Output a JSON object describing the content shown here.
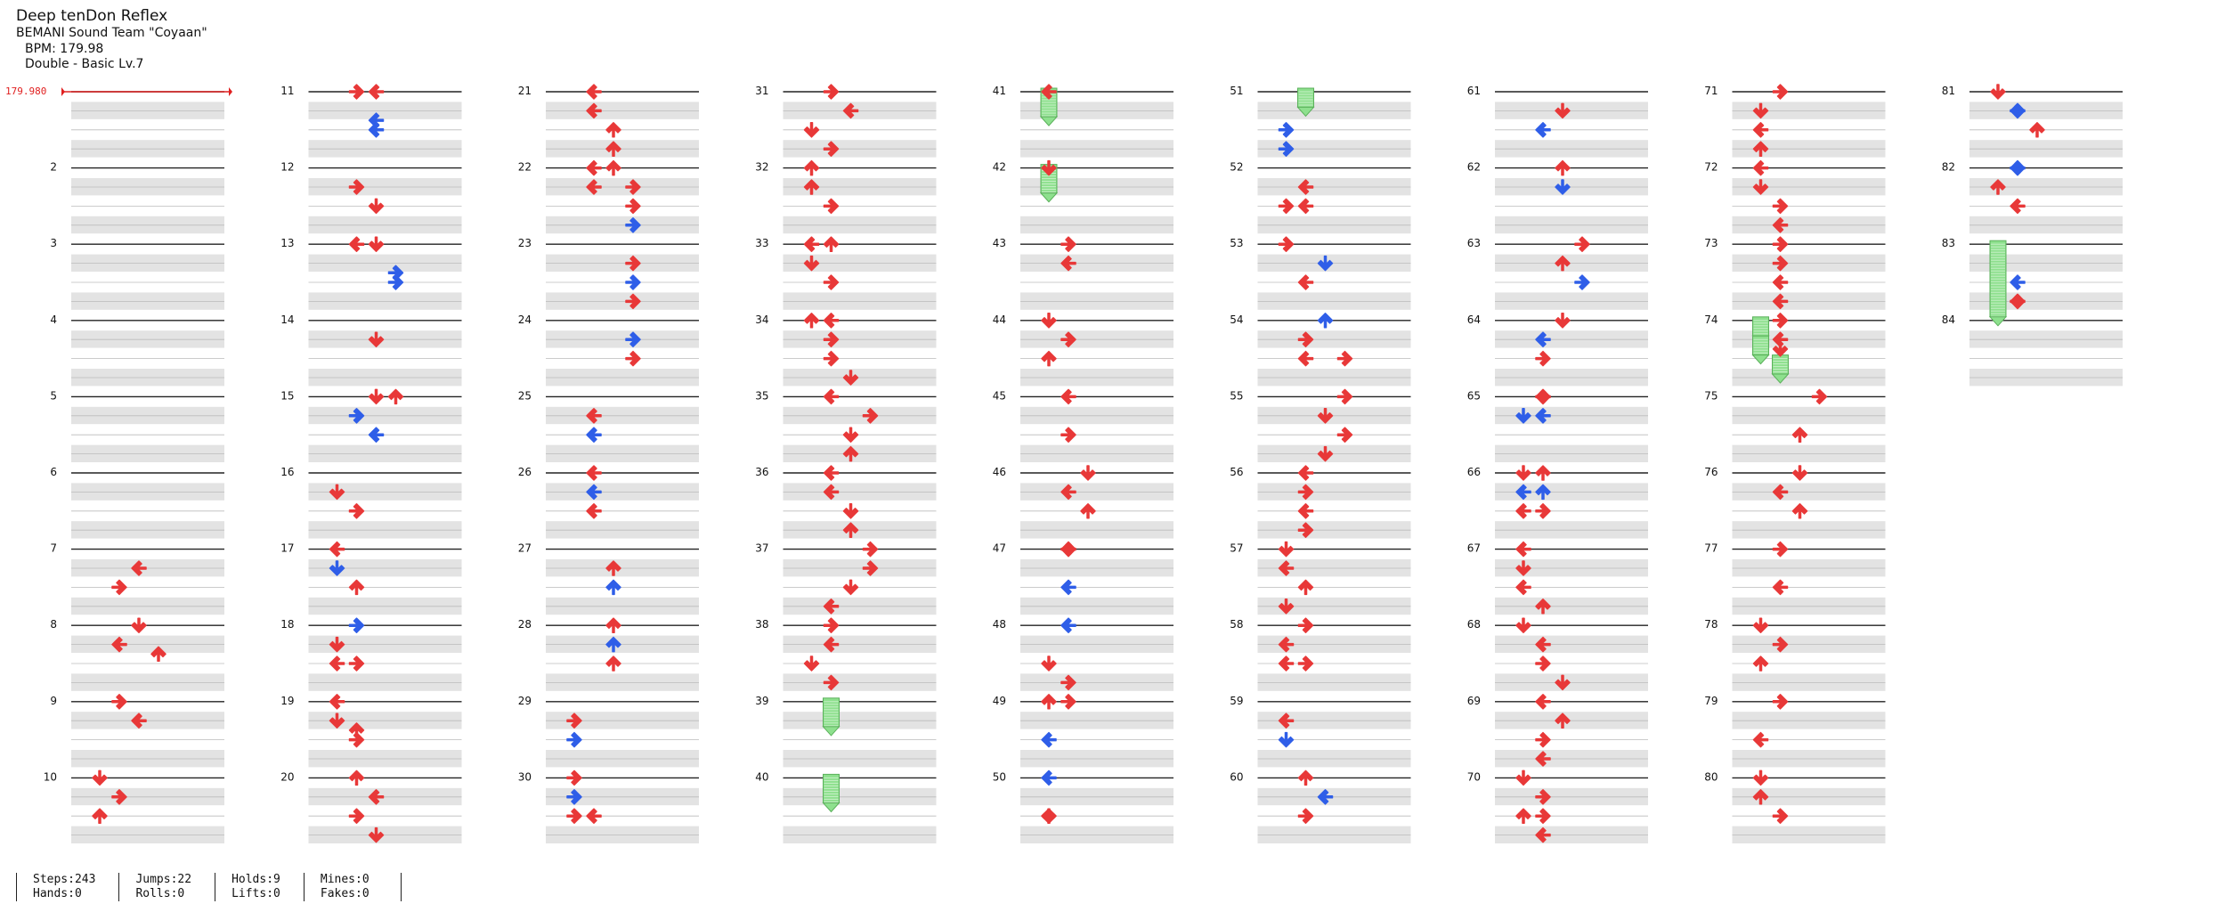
{
  "song": {
    "title": "Deep tenDon Reflex",
    "artist": "BEMANI Sound Team \"Coyaan\"",
    "bpm_text": "BPM: 179.98",
    "difficulty_text": "Double - Basic  Lv.7"
  },
  "bpm_marker": "179.980",
  "stats": [
    {
      "line1": "Steps:243",
      "line2": "Hands:0"
    },
    {
      "line1": "Jumps:22",
      "line2": "Rolls:0"
    },
    {
      "line1": "Holds:9",
      "line2": "Lifts:0"
    },
    {
      "line1": "Mines:0",
      "line2": "Fakes:0"
    }
  ],
  "colors": {
    "note": "#e83838",
    "note_alt": "#2f5ee8",
    "hold": "#8ee08e",
    "bpm": "#e02020"
  },
  "measure_count": 84,
  "measures_per_column": 10,
  "columns": 9,
  "rows_per_measure": 4,
  "notes": [
    {
      "m": 7,
      "r": 1,
      "l": 2,
      "d": "L"
    },
    {
      "m": 7,
      "r": 2,
      "l": 1,
      "d": "R"
    },
    {
      "m": 8,
      "r": 0,
      "l": 2,
      "d": "D"
    },
    {
      "m": 8,
      "r": 1,
      "l": 1,
      "d": "L"
    },
    {
      "m": 8,
      "r": 1.5,
      "l": 3,
      "d": "U"
    },
    {
      "m": 9,
      "r": 0,
      "l": 1,
      "d": "R"
    },
    {
      "m": 9,
      "r": 1,
      "l": 2,
      "d": "L"
    },
    {
      "m": 10,
      "r": 0,
      "l": 0,
      "d": "D"
    },
    {
      "m": 10,
      "r": 1,
      "l": 1,
      "d": "R"
    },
    {
      "m": 10,
      "r": 2,
      "l": 0,
      "d": "U"
    },
    {
      "m": 11,
      "r": 0,
      "l": 1,
      "d": "R"
    },
    {
      "m": 11,
      "r": 0,
      "l": 2,
      "d": "L"
    },
    {
      "m": 11,
      "r": 1.5,
      "l": 2,
      "d": "L",
      "c": "b"
    },
    {
      "m": 11,
      "r": 2,
      "l": 2,
      "d": "L",
      "c": "b"
    },
    {
      "m": 12,
      "r": 1,
      "l": 1,
      "d": "R"
    },
    {
      "m": 12,
      "r": 2,
      "l": 2,
      "d": "D"
    },
    {
      "m": 13,
      "r": 0,
      "l": 2,
      "d": "D"
    },
    {
      "m": 13,
      "r": 0,
      "l": 1,
      "d": "L"
    },
    {
      "m": 13,
      "r": 1.5,
      "l": 3,
      "d": "R",
      "c": "b"
    },
    {
      "m": 13,
      "r": 2,
      "l": 3,
      "d": "R",
      "c": "b"
    },
    {
      "m": 14,
      "r": 1,
      "l": 2,
      "d": "D"
    },
    {
      "m": 15,
      "r": 0,
      "l": 2,
      "d": "D"
    },
    {
      "m": 15,
      "r": 0,
      "l": 3,
      "d": "U"
    },
    {
      "m": 15,
      "r": 1,
      "l": 1,
      "d": "R",
      "c": "b"
    },
    {
      "m": 15,
      "r": 2,
      "l": 2,
      "d": "L",
      "c": "b"
    },
    {
      "m": 16,
      "r": 1,
      "l": 0,
      "d": "D"
    },
    {
      "m": 16,
      "r": 2,
      "l": 1,
      "d": "R"
    },
    {
      "m": 17,
      "r": 0,
      "l": 0,
      "d": "L"
    },
    {
      "m": 17,
      "r": 1,
      "l": 0,
      "d": "D",
      "c": "b"
    },
    {
      "m": 17,
      "r": 2,
      "l": 1,
      "d": "U"
    },
    {
      "m": 18,
      "r": 0,
      "l": 1,
      "d": "R",
      "c": "b"
    },
    {
      "m": 18,
      "r": 1,
      "l": 0,
      "d": "D"
    },
    {
      "m": 18,
      "r": 2,
      "l": 0,
      "d": "L"
    },
    {
      "m": 18,
      "r": 2,
      "l": 1,
      "d": "R"
    },
    {
      "m": 19,
      "r": 0,
      "l": 0,
      "d": "L"
    },
    {
      "m": 19,
      "r": 1,
      "l": 0,
      "d": "D"
    },
    {
      "m": 19,
      "r": 1.5,
      "l": 1,
      "d": "U"
    },
    {
      "m": 19,
      "r": 2,
      "l": 1,
      "d": "R"
    },
    {
      "m": 20,
      "r": 0,
      "l": 1,
      "d": "U"
    },
    {
      "m": 20,
      "r": 1,
      "l": 2,
      "d": "L"
    },
    {
      "m": 20,
      "r": 2,
      "l": 1,
      "d": "R"
    },
    {
      "m": 20,
      "r": 3,
      "l": 2,
      "d": "D"
    },
    {
      "m": 21,
      "r": 0,
      "l": 1,
      "d": "L"
    },
    {
      "m": 21,
      "r": 1,
      "l": 1,
      "d": "L"
    },
    {
      "m": 21,
      "r": 2,
      "l": 2,
      "d": "U"
    },
    {
      "m": 21,
      "r": 3,
      "l": 2,
      "d": "U"
    },
    {
      "m": 22,
      "r": 0,
      "l": 1,
      "d": "L"
    },
    {
      "m": 22,
      "r": 0,
      "l": 2,
      "d": "U"
    },
    {
      "m": 22,
      "r": 1,
      "l": 1,
      "d": "L"
    },
    {
      "m": 22,
      "r": 1,
      "l": 3,
      "d": "R"
    },
    {
      "m": 22,
      "r": 2,
      "l": 3,
      "d": "R"
    },
    {
      "m": 22,
      "r": 3,
      "l": 3,
      "d": "R",
      "c": "b"
    },
    {
      "m": 23,
      "r": 1,
      "l": 3,
      "d": "R"
    },
    {
      "m": 23,
      "r": 2,
      "l": 3,
      "d": "R",
      "c": "b"
    },
    {
      "m": 23,
      "r": 3,
      "l": 3,
      "d": "R"
    },
    {
      "m": 24,
      "r": 1,
      "l": 3,
      "d": "R",
      "c": "b"
    },
    {
      "m": 24,
      "r": 2,
      "l": 3,
      "d": "R"
    },
    {
      "m": 25,
      "r": 1,
      "l": 1,
      "d": "L"
    },
    {
      "m": 25,
      "r": 2,
      "l": 1,
      "d": "L",
      "c": "b"
    },
    {
      "m": 26,
      "r": 0,
      "l": 1,
      "d": "L"
    },
    {
      "m": 26,
      "r": 1,
      "l": 1,
      "d": "L",
      "c": "b"
    },
    {
      "m": 26,
      "r": 2,
      "l": 1,
      "d": "L"
    },
    {
      "m": 27,
      "r": 1,
      "l": 2,
      "d": "U"
    },
    {
      "m": 27,
      "r": 2,
      "l": 2,
      "d": "U",
      "c": "b"
    },
    {
      "m": 28,
      "r": 0,
      "l": 2,
      "d": "U"
    },
    {
      "m": 28,
      "r": 1,
      "l": 2,
      "d": "U",
      "c": "b"
    },
    {
      "m": 28,
      "r": 2,
      "l": 2,
      "d": "U"
    },
    {
      "m": 29,
      "r": 1,
      "l": 0,
      "d": "R"
    },
    {
      "m": 29,
      "r": 2,
      "l": 0,
      "d": "R",
      "c": "b"
    },
    {
      "m": 30,
      "r": 0,
      "l": 0,
      "d": "R"
    },
    {
      "m": 30,
      "r": 1,
      "l": 0,
      "d": "R",
      "c": "b"
    },
    {
      "m": 30,
      "r": 2,
      "l": 0,
      "d": "R"
    },
    {
      "m": 30,
      "r": 2,
      "l": 1,
      "d": "L"
    },
    {
      "m": 31,
      "r": 0,
      "l": 1,
      "d": "R"
    },
    {
      "m": 31,
      "r": 1,
      "l": 2,
      "d": "L"
    },
    {
      "m": 31,
      "r": 2,
      "l": 0,
      "d": "D"
    },
    {
      "m": 31,
      "r": 3,
      "l": 1,
      "d": "R"
    },
    {
      "m": 32,
      "r": 0,
      "l": 0,
      "d": "U"
    },
    {
      "m": 32,
      "r": 1,
      "l": 0,
      "d": "U"
    },
    {
      "m": 32,
      "r": 2,
      "l": 1,
      "d": "R"
    },
    {
      "m": 33,
      "r": 0,
      "l": 0,
      "d": "L"
    },
    {
      "m": 33,
      "r": 0,
      "l": 1,
      "d": "U"
    },
    {
      "m": 33,
      "r": 1,
      "l": 0,
      "d": "D"
    },
    {
      "m": 33,
      "r": 2,
      "l": 1,
      "d": "R"
    },
    {
      "m": 34,
      "r": 0,
      "l": 0,
      "d": "U"
    },
    {
      "m": 34,
      "r": 0,
      "l": 1,
      "d": "L"
    },
    {
      "m": 34,
      "r": 1,
      "l": 1,
      "d": "R"
    },
    {
      "m": 34,
      "r": 2,
      "l": 1,
      "d": "R"
    },
    {
      "m": 34,
      "r": 3,
      "l": 2,
      "d": "D"
    },
    {
      "m": 35,
      "r": 0,
      "l": 1,
      "d": "L"
    },
    {
      "m": 35,
      "r": 1,
      "l": 3,
      "d": "R"
    },
    {
      "m": 35,
      "r": 2,
      "l": 2,
      "d": "D"
    },
    {
      "m": 35,
      "r": 3,
      "l": 2,
      "d": "U"
    },
    {
      "m": 36,
      "r": 0,
      "l": 1,
      "d": "L"
    },
    {
      "m": 36,
      "r": 1,
      "l": 1,
      "d": "L"
    },
    {
      "m": 36,
      "r": 2,
      "l": 2,
      "d": "D"
    },
    {
      "m": 36,
      "r": 3,
      "l": 2,
      "d": "U"
    },
    {
      "m": 37,
      "r": 0,
      "l": 3,
      "d": "R"
    },
    {
      "m": 37,
      "r": 1,
      "l": 3,
      "d": "R"
    },
    {
      "m": 37,
      "r": 2,
      "l": 2,
      "d": "D"
    },
    {
      "m": 37,
      "r": 3,
      "l": 1,
      "d": "L"
    },
    {
      "m": 38,
      "r": 0,
      "l": 1,
      "d": "R"
    },
    {
      "m": 38,
      "r": 1,
      "l": 1,
      "d": "L"
    },
    {
      "m": 38,
      "r": 2,
      "l": 0,
      "d": "D"
    },
    {
      "m": 38,
      "r": 3,
      "l": 1,
      "d": "R"
    },
    {
      "m": 41,
      "r": 0,
      "l": 0,
      "d": "L"
    },
    {
      "m": 42,
      "r": 0,
      "l": 0,
      "d": "D"
    },
    {
      "m": 43,
      "r": 0,
      "l": 1,
      "d": "R"
    },
    {
      "m": 43,
      "r": 1,
      "l": 1,
      "d": "L"
    },
    {
      "m": 44,
      "r": 0,
      "l": 0,
      "d": "D"
    },
    {
      "m": 44,
      "r": 1,
      "l": 1,
      "d": "R"
    },
    {
      "m": 44,
      "r": 2,
      "l": 0,
      "d": "U"
    },
    {
      "m": 45,
      "r": 0,
      "l": 1,
      "d": "L"
    },
    {
      "m": 45,
      "r": 2,
      "l": 1,
      "d": "R"
    },
    {
      "m": 46,
      "r": 0,
      "l": 2,
      "d": "D"
    },
    {
      "m": 46,
      "r": 1,
      "l": 1,
      "d": "L"
    },
    {
      "m": 46,
      "r": 2,
      "l": 2,
      "d": "U"
    },
    {
      "m": 47,
      "r": 0,
      "l": 1,
      "d": "R"
    },
    {
      "m": 47,
      "r": 0,
      "l": 1,
      "d": "L"
    },
    {
      "m": 47,
      "r": 2,
      "l": 1,
      "d": "L",
      "c": "b"
    },
    {
      "m": 48,
      "r": 0,
      "l": 1,
      "d": "L",
      "c": "b"
    },
    {
      "m": 48,
      "r": 2,
      "l": 0,
      "d": "D"
    },
    {
      "m": 48,
      "r": 3,
      "l": 1,
      "d": "R"
    },
    {
      "m": 49,
      "r": 0,
      "l": 0,
      "d": "U"
    },
    {
      "m": 49,
      "r": 0,
      "l": 1,
      "d": "R"
    },
    {
      "m": 49,
      "r": 2,
      "l": 0,
      "d": "L",
      "c": "b"
    },
    {
      "m": 50,
      "r": 0,
      "l": 0,
      "d": "L",
      "c": "b"
    },
    {
      "m": 50,
      "r": 2,
      "l": 0,
      "d": "D"
    },
    {
      "m": 50,
      "r": 2,
      "l": 0,
      "d": "U"
    },
    {
      "m": 51,
      "r": 2,
      "l": 0,
      "d": "R",
      "c": "b"
    },
    {
      "m": 51,
      "r": 3,
      "l": 0,
      "d": "R",
      "c": "b"
    },
    {
      "m": 52,
      "r": 1,
      "l": 1,
      "d": "L"
    },
    {
      "m": 52,
      "r": 2,
      "l": 0,
      "d": "R"
    },
    {
      "m": 52,
      "r": 2,
      "l": 1,
      "d": "L"
    },
    {
      "m": 53,
      "r": 0,
      "l": 0,
      "d": "R"
    },
    {
      "m": 53,
      "r": 1,
      "l": 2,
      "d": "D",
      "c": "b"
    },
    {
      "m": 53,
      "r": 2,
      "l": 1,
      "d": "L"
    },
    {
      "m": 54,
      "r": 0,
      "l": 2,
      "d": "U",
      "c": "b"
    },
    {
      "m": 54,
      "r": 1,
      "l": 1,
      "d": "R"
    },
    {
      "m": 54,
      "r": 2,
      "l": 1,
      "d": "L"
    },
    {
      "m": 54,
      "r": 2,
      "l": 3,
      "d": "R"
    },
    {
      "m": 55,
      "r": 0,
      "l": 3,
      "d": "R"
    },
    {
      "m": 55,
      "r": 1,
      "l": 2,
      "d": "D"
    },
    {
      "m": 55,
      "r": 2,
      "l": 3,
      "d": "R"
    },
    {
      "m": 55,
      "r": 3,
      "l": 2,
      "d": "D"
    },
    {
      "m": 56,
      "r": 0,
      "l": 1,
      "d": "L"
    },
    {
      "m": 56,
      "r": 1,
      "l": 1,
      "d": "R"
    },
    {
      "m": 56,
      "r": 2,
      "l": 1,
      "d": "L"
    },
    {
      "m": 56,
      "r": 3,
      "l": 1,
      "d": "R"
    },
    {
      "m": 57,
      "r": 0,
      "l": 0,
      "d": "D"
    },
    {
      "m": 57,
      "r": 1,
      "l": 0,
      "d": "L"
    },
    {
      "m": 57,
      "r": 2,
      "l": 1,
      "d": "U"
    },
    {
      "m": 57,
      "r": 3,
      "l": 0,
      "d": "D"
    },
    {
      "m": 58,
      "r": 0,
      "l": 1,
      "d": "R"
    },
    {
      "m": 58,
      "r": 1,
      "l": 0,
      "d": "L"
    },
    {
      "m": 58,
      "r": 2,
      "l": 0,
      "d": "L"
    },
    {
      "m": 58,
      "r": 2,
      "l": 1,
      "d": "R"
    },
    {
      "m": 59,
      "r": 1,
      "l": 0,
      "d": "L"
    },
    {
      "m": 59,
      "r": 2,
      "l": 0,
      "d": "D",
      "c": "b"
    },
    {
      "m": 60,
      "r": 0,
      "l": 1,
      "d": "U"
    },
    {
      "m": 60,
      "r": 1,
      "l": 2,
      "d": "L",
      "c": "b"
    },
    {
      "m": 60,
      "r": 2,
      "l": 1,
      "d": "R"
    },
    {
      "m": 61,
      "r": 1,
      "l": 2,
      "d": "D"
    },
    {
      "m": 61,
      "r": 2,
      "l": 1,
      "d": "L",
      "c": "b"
    },
    {
      "m": 62,
      "r": 0,
      "l": 2,
      "d": "U"
    },
    {
      "m": 62,
      "r": 1,
      "l": 2,
      "d": "D",
      "c": "b"
    },
    {
      "m": 63,
      "r": 0,
      "l": 3,
      "d": "R"
    },
    {
      "m": 63,
      "r": 1,
      "l": 2,
      "d": "U"
    },
    {
      "m": 63,
      "r": 2,
      "l": 3,
      "d": "R",
      "c": "b"
    },
    {
      "m": 64,
      "r": 0,
      "l": 2,
      "d": "D"
    },
    {
      "m": 64,
      "r": 1,
      "l": 1,
      "d": "L",
      "c": "b"
    },
    {
      "m": 64,
      "r": 2,
      "l": 1,
      "d": "R"
    },
    {
      "m": 65,
      "r": 0,
      "l": 1,
      "d": "R"
    },
    {
      "m": 65,
      "r": 0,
      "l": 1,
      "d": "L"
    },
    {
      "m": 65,
      "r": 1,
      "l": 0,
      "d": "D",
      "c": "b"
    },
    {
      "m": 65,
      "r": 1,
      "l": 1,
      "d": "L",
      "c": "b"
    },
    {
      "m": 66,
      "r": 0,
      "l": 0,
      "d": "D"
    },
    {
      "m": 66,
      "r": 0,
      "l": 1,
      "d": "U"
    },
    {
      "m": 66,
      "r": 1,
      "l": 0,
      "d": "L",
      "c": "b"
    },
    {
      "m": 66,
      "r": 1,
      "l": 1,
      "d": "U",
      "c": "b"
    },
    {
      "m": 66,
      "r": 2,
      "l": 0,
      "d": "L"
    },
    {
      "m": 66,
      "r": 2,
      "l": 1,
      "d": "R"
    },
    {
      "m": 67,
      "r": 0,
      "l": 0,
      "d": "L"
    },
    {
      "m": 67,
      "r": 1,
      "l": 0,
      "d": "D"
    },
    {
      "m": 67,
      "r": 2,
      "l": 0,
      "d": "L"
    },
    {
      "m": 67,
      "r": 3,
      "l": 1,
      "d": "U"
    },
    {
      "m": 68,
      "r": 0,
      "l": 0,
      "d": "D"
    },
    {
      "m": 68,
      "r": 1,
      "l": 1,
      "d": "L"
    },
    {
      "m": 68,
      "r": 2,
      "l": 1,
      "d": "R"
    },
    {
      "m": 68,
      "r": 3,
      "l": 2,
      "d": "D"
    },
    {
      "m": 69,
      "r": 0,
      "l": 1,
      "d": "L"
    },
    {
      "m": 69,
      "r": 1,
      "l": 2,
      "d": "U"
    },
    {
      "m": 69,
      "r": 2,
      "l": 1,
      "d": "R"
    },
    {
      "m": 69,
      "r": 3,
      "l": 1,
      "d": "L"
    },
    {
      "m": 70,
      "r": 0,
      "l": 0,
      "d": "D"
    },
    {
      "m": 70,
      "r": 1,
      "l": 1,
      "d": "R"
    },
    {
      "m": 70,
      "r": 2,
      "l": 0,
      "d": "U"
    },
    {
      "m": 70,
      "r": 2,
      "l": 1,
      "d": "R"
    },
    {
      "m": 70,
      "r": 3,
      "l": 1,
      "d": "L"
    },
    {
      "m": 71,
      "r": 0,
      "l": 1,
      "d": "R"
    },
    {
      "m": 71,
      "r": 1,
      "l": 0,
      "d": "D"
    },
    {
      "m": 71,
      "r": 2,
      "l": 0,
      "d": "L"
    },
    {
      "m": 71,
      "r": 3,
      "l": 0,
      "d": "U"
    },
    {
      "m": 72,
      "r": 0,
      "l": 0,
      "d": "L"
    },
    {
      "m": 72,
      "r": 1,
      "l": 0,
      "d": "D"
    },
    {
      "m": 72,
      "r": 2,
      "l": 1,
      "d": "R"
    },
    {
      "m": 72,
      "r": 3,
      "l": 1,
      "d": "L"
    },
    {
      "m": 73,
      "r": 0,
      "l": 1,
      "d": "R"
    },
    {
      "m": 73,
      "r": 1,
      "l": 1,
      "d": "R"
    },
    {
      "m": 73,
      "r": 2,
      "l": 1,
      "d": "L"
    },
    {
      "m": 73,
      "r": 3,
      "l": 1,
      "d": "L"
    },
    {
      "m": 74,
      "r": 0,
      "l": 1,
      "d": "R"
    },
    {
      "m": 74,
      "r": 1,
      "l": 1,
      "d": "L"
    },
    {
      "m": 74,
      "r": 1.5,
      "l": 1,
      "d": "D"
    },
    {
      "m": 75,
      "r": 0,
      "l": 3,
      "d": "R"
    },
    {
      "m": 75,
      "r": 2,
      "l": 2,
      "d": "U"
    },
    {
      "m": 76,
      "r": 0,
      "l": 2,
      "d": "D"
    },
    {
      "m": 76,
      "r": 1,
      "l": 1,
      "d": "L"
    },
    {
      "m": 76,
      "r": 2,
      "l": 2,
      "d": "U"
    },
    {
      "m": 77,
      "r": 0,
      "l": 1,
      "d": "R"
    },
    {
      "m": 77,
      "r": 2,
      "l": 1,
      "d": "L"
    },
    {
      "m": 78,
      "r": 0,
      "l": 0,
      "d": "D"
    },
    {
      "m": 78,
      "r": 1,
      "l": 1,
      "d": "R"
    },
    {
      "m": 78,
      "r": 2,
      "l": 0,
      "d": "U"
    },
    {
      "m": 79,
      "r": 0,
      "l": 1,
      "d": "R"
    },
    {
      "m": 79,
      "r": 2,
      "l": 0,
      "d": "L"
    },
    {
      "m": 80,
      "r": 0,
      "l": 0,
      "d": "D"
    },
    {
      "m": 80,
      "r": 1,
      "l": 0,
      "d": "U"
    },
    {
      "m": 80,
      "r": 2,
      "l": 1,
      "d": "R"
    },
    {
      "m": 81,
      "r": 0,
      "l": 0,
      "d": "D"
    },
    {
      "m": 81,
      "r": 1,
      "l": 1,
      "d": "R",
      "c": "b"
    },
    {
      "m": 81,
      "r": 1,
      "l": 1,
      "d": "L",
      "c": "b"
    },
    {
      "m": 81,
      "r": 2,
      "l": 2,
      "d": "U"
    },
    {
      "m": 82,
      "r": 0,
      "l": 1,
      "d": "R",
      "c": "b"
    },
    {
      "m": 82,
      "r": 0,
      "l": 1,
      "d": "L",
      "c": "b"
    },
    {
      "m": 82,
      "r": 1,
      "l": 0,
      "d": "U"
    },
    {
      "m": 82,
      "r": 2,
      "l": 1,
      "d": "L"
    },
    {
      "m": 83,
      "r": 2,
      "l": 1,
      "d": "L",
      "c": "b"
    },
    {
      "m": 83,
      "r": 3,
      "l": 1,
      "d": "R"
    },
    {
      "m": 83,
      "r": 3,
      "l": 1,
      "d": "L"
    }
  ],
  "holds": [
    {
      "m": 41,
      "r": 0,
      "l": 0,
      "len": 1.5
    },
    {
      "m": 42,
      "r": 0,
      "l": 0,
      "len": 1.5
    },
    {
      "m": 51,
      "r": 0,
      "l": 1,
      "len": 1
    },
    {
      "m": 39,
      "r": 0,
      "l": 1,
      "len": 1.5
    },
    {
      "m": 40,
      "r": 0,
      "l": 1,
      "len": 1.5
    },
    {
      "m": 83,
      "r": 0,
      "l": 0,
      "len": 4
    },
    {
      "m": 74,
      "r": 0,
      "l": 0,
      "len": 1
    },
    {
      "m": 74,
      "r": 1,
      "l": 0,
      "len": 1
    },
    {
      "m": 74,
      "r": 2,
      "l": 1,
      "len": 1
    }
  ]
}
